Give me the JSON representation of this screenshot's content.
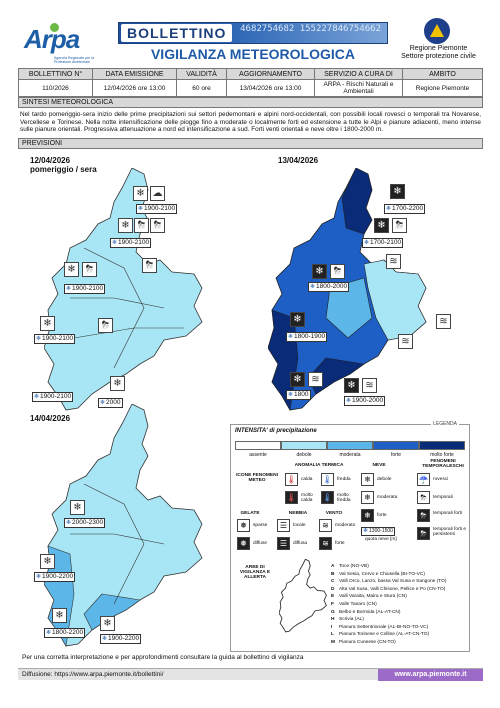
{
  "header": {
    "logo_text": "Arpa",
    "logo_subtitle": "Agenzia Regionale per la Protezione Ambientale",
    "banner_tag": "BOLLETTINO",
    "banner_numbers": "4682754682 155227846754662",
    "title": "VIGILANZA METEOROLOGICA",
    "region_line1": "Regione Piemonte",
    "region_line2": "Settore protezione civile"
  },
  "info_table": {
    "headers": [
      "BOLLETTINO N°",
      "DATA EMISSIONE",
      "VALIDITÀ",
      "AGGIORNAMENTO",
      "SERVIZIO A CURA DI",
      "AMBITO"
    ],
    "values": [
      "110/2026",
      "12/04/2026 ore 13:00",
      "60 ore",
      "13/04/2026 ore 13:00",
      "ARPA - Rischi Naturali e Ambientali",
      "Regione Piemonte"
    ]
  },
  "synopsis": {
    "heading": "SINTESI METEOROLOGICA",
    "text": "Nel tardo pomeriggio-sera inizio delle prime precipitazioni sui settori pedemontani e alpini nord-occidentali, con possibili locali rovesci o temporali tra Novarese, Vercellese e Torinese. Nella notte intensificazione delle piogge fino a moderate o localmente forti ed estensione a tutte le Alpi e pianure adiacenti, meno intense sulle pianure orientali. Progressiva attenuazione a nord ed intensificazione a sud. Forti venti orientali e neve oltre i 1800-2000 m."
  },
  "forecast_heading": "PREVISIONI",
  "maps": [
    {
      "date": "12/04/2026",
      "period": "pomeriggio / sera",
      "snow_levels": [
        "1900-2100",
        "1900-2100",
        "1900-2100",
        "1900-2100",
        "1900-2100",
        "2000"
      ]
    },
    {
      "date": "13/04/2026",
      "period": "",
      "snow_levels": [
        "1700-2200",
        "1700-2100",
        "1800-2000",
        "1800-1900",
        "1800",
        "1900-2000"
      ]
    },
    {
      "date": "14/04/2026",
      "period": "",
      "snow_levels": [
        "2000-2300",
        "1900-2200",
        "1800-2200",
        "1900-2200"
      ]
    }
  ],
  "legend": {
    "tag": "LEGENDA",
    "intensity_title": "INTENSITA' di precipitazione",
    "intensity_levels": [
      {
        "label": "assente",
        "color": "#ffffff"
      },
      {
        "label": "debole",
        "color": "#a8e6f5"
      },
      {
        "label": "moderata",
        "color": "#5cb6e8"
      },
      {
        "label": "forte",
        "color": "#1e5fc6"
      },
      {
        "label": "molto forte",
        "color": "#0a2b78"
      }
    ],
    "phenomena_heading": "ICONE FENOMENI METEO",
    "thermal_heading": "ANOMALIA TERMICA",
    "snow_heading": "NEVE",
    "storm_heading": "FENOMENI TEMPORALESCHI",
    "hot": "molto calda",
    "warm": "calda",
    "cold": "fredda",
    "very_cold": "molto fredda",
    "snow_weak": "debole",
    "snow_moderate": "moderata",
    "snow_strong": "forte",
    "snow_level_example": "1300-1500",
    "snow_level_caption": "quota neve [m]",
    "showers": "rovesci",
    "storms": "temporali",
    "strong_storms": "temporali forti",
    "persistent_storms": "temporali forti e persistenti",
    "ice_heading": "GELATE",
    "fog_heading": "NEBBIA",
    "wind_heading": "VENTO",
    "sparse": "sparse",
    "diffuse": "diffuse",
    "local": "locale",
    "fog_diffuse": "diffusa",
    "wind_moderate": "moderato",
    "wind_strong": "forte",
    "areas_heading": "AREE DI VIGILANZA E ALLERTA",
    "areas": [
      {
        "code": "A",
        "name": "Toce (NO-VB)"
      },
      {
        "code": "B",
        "name": "Val Sesia, Cervo e Chiusella (BI-TO-VC)"
      },
      {
        "code": "C",
        "name": "Valli Orco, Lanzo, bassa Val Susa e Sangone (TO)"
      },
      {
        "code": "D",
        "name": "Alta Val Susa, Valli Chisone, Pellice e Po (CN-TO)"
      },
      {
        "code": "E",
        "name": "Valli Varaita, Maira e Stura (CN)"
      },
      {
        "code": "F",
        "name": "Valle Tanaro (CN)"
      },
      {
        "code": "G",
        "name": "Belbo e Bormida (AL-AT-CN)"
      },
      {
        "code": "H",
        "name": "Scrivia (AL)"
      },
      {
        "code": "I",
        "name": "Pianura Settentrionale (AL-BI-NO-TO-VC)"
      },
      {
        "code": "L",
        "name": "Pianura Torinese e Colline (AL-AT-CN-TO)"
      },
      {
        "code": "M",
        "name": "Pianura Cuneese (CN-TO)"
      }
    ]
  },
  "footer": {
    "note": "Per una corretta interpretazione e per approfondimenti consultare la guida al bollettino di vigilanza",
    "url": "Diffusione: https://www.arpa.piemonte.it/bollettini/",
    "site": "www.arpa.piemonte.it"
  },
  "colors": {
    "light": "#a8e6f5",
    "moderate": "#5cb6e8",
    "strong": "#1e5fc6",
    "very_strong": "#0a2b78",
    "brand_blue": "#1f5aa8",
    "footer_purple": "#9b6bc7"
  }
}
